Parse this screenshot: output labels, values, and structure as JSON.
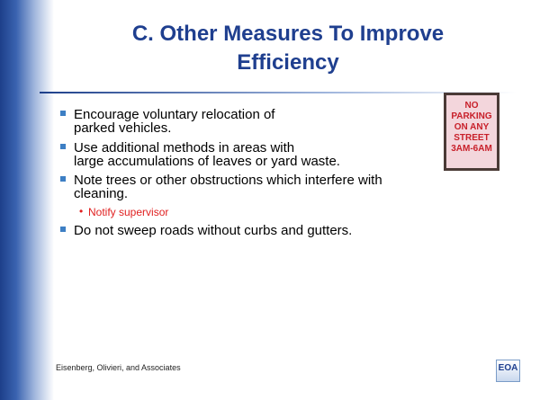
{
  "header": {
    "title": [
      "C. Other Measures To Improve",
      "Efficiency"
    ]
  },
  "bullets": [
    {
      "lines": [
        "Encourage voluntary relocation of",
        "parked vehicles."
      ]
    },
    {
      "lines": [
        "Use additional methods in areas with",
        "large accumulations of leaves or yard waste."
      ]
    },
    {
      "lines": [
        "Note trees or other obstructions which interfere with",
        "cleaning."
      ],
      "sub": [
        "Notify supervisor"
      ]
    },
    {
      "lines": [
        "Do not sweep roads without curbs and gutters."
      ]
    }
  ],
  "sign": [
    "NO",
    "PARKING",
    "ON ANY",
    "STREET",
    "3AM-6AM"
  ],
  "footer": "Eisenberg, Olivieri, and Associates",
  "logo": "EOA"
}
